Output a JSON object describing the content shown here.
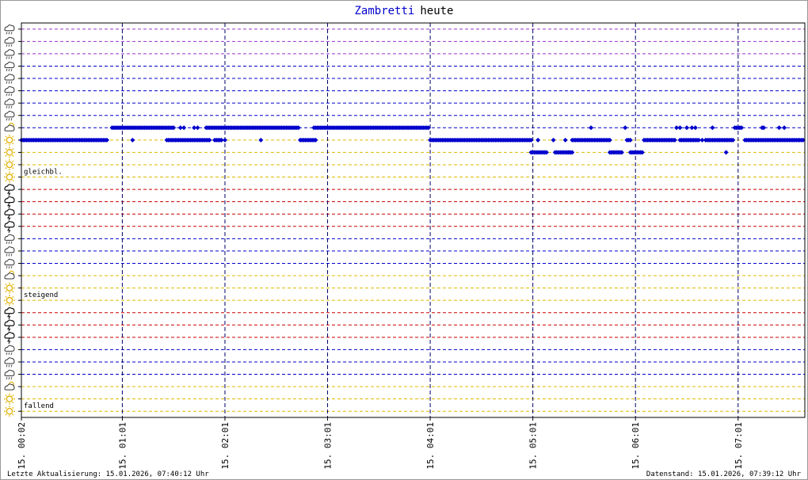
{
  "chart_data": {
    "type": "scatter",
    "title_part1": "Zambretti",
    "title_part2": "heute",
    "title_colors": {
      "part1": "#0000cc",
      "part2": "#000000"
    },
    "x_unit": "minutes after 15. 00:02",
    "xlim": [
      0,
      458
    ],
    "ylim": [
      0.5,
      32.5
    ],
    "x_ticks": [
      {
        "label": "15. 00:02",
        "x": 0
      },
      {
        "label": "15. 01:01",
        "x": 59
      },
      {
        "label": "15. 02:01",
        "x": 119
      },
      {
        "label": "15. 03:01",
        "x": 179
      },
      {
        "label": "15. 04:01",
        "x": 239
      },
      {
        "label": "15. 05:01",
        "x": 299
      },
      {
        "label": "15. 06:01",
        "x": 359
      },
      {
        "label": "15. 07:01",
        "x": 419
      }
    ],
    "y_levels": [
      {
        "y": 1,
        "icon": "cloud-rain-icon",
        "color": "#9933cc"
      },
      {
        "y": 2,
        "icon": "cloud-rain-icon",
        "color": "#9933cc"
      },
      {
        "y": 3,
        "icon": "cloud-rain-icon",
        "color": "#9933cc"
      },
      {
        "y": 4,
        "icon": "cloud-rain-icon",
        "color": "#0000cc"
      },
      {
        "y": 5,
        "icon": "cloud-rain-icon",
        "color": "#0000cc"
      },
      {
        "y": 6,
        "icon": "cloud-rain-icon",
        "color": "#0000cc"
      },
      {
        "y": 7,
        "icon": "cloud-rain-icon",
        "color": "#0000cc"
      },
      {
        "y": 8,
        "icon": "cloud-rain-icon",
        "color": "#0000cc"
      },
      {
        "y": 9,
        "icon": "cloud-sun-icon",
        "color": "#0000cc"
      },
      {
        "y": 10,
        "icon": "sun-icon",
        "color": "#ddbb00"
      },
      {
        "y": 11,
        "icon": "sun-icon",
        "color": "#ddbb00"
      },
      {
        "y": 12,
        "icon": "sun-icon",
        "color": "#ddbb00"
      },
      {
        "y": 13,
        "icon": "sun-icon",
        "color": "#ddbb00"
      },
      {
        "y": 14,
        "icon": "storm-cloud-icon",
        "color": "#cc0000"
      },
      {
        "y": 15,
        "icon": "storm-cloud-icon",
        "color": "#cc0000"
      },
      {
        "y": 16,
        "icon": "storm-cloud-icon",
        "color": "#cc0000"
      },
      {
        "y": 17,
        "icon": "storm-cloud-icon",
        "color": "#cc0000"
      },
      {
        "y": 18,
        "icon": "cloud-rain-icon",
        "color": "#0000cc"
      },
      {
        "y": 19,
        "icon": "cloud-rain-icon",
        "color": "#0000cc"
      },
      {
        "y": 20,
        "icon": "cloud-rain-icon",
        "color": "#0000cc"
      },
      {
        "y": 21,
        "icon": "cloud-sun-icon",
        "color": "#ddbb00"
      },
      {
        "y": 22,
        "icon": "sun-icon",
        "color": "#ddbb00"
      },
      {
        "y": 23,
        "icon": "sun-icon",
        "color": "#ddbb00"
      },
      {
        "y": 24,
        "icon": "storm-cloud-icon",
        "color": "#cc0000"
      },
      {
        "y": 25,
        "icon": "storm-cloud-icon",
        "color": "#cc0000"
      },
      {
        "y": 26,
        "icon": "storm-cloud-icon",
        "color": "#cc0000"
      },
      {
        "y": 27,
        "icon": "cloud-rain-icon",
        "color": "#0000cc"
      },
      {
        "y": 28,
        "icon": "cloud-rain-icon",
        "color": "#0000cc"
      },
      {
        "y": 29,
        "icon": "cloud-rain-icon",
        "color": "#0000cc"
      },
      {
        "y": 30,
        "icon": "cloud-sun-icon",
        "color": "#ddbb00"
      },
      {
        "y": 31,
        "icon": "sun-icon",
        "color": "#ddbb00"
      },
      {
        "y": 32,
        "icon": "sun-icon",
        "color": "#ddbb00"
      }
    ],
    "zone_labels": [
      {
        "text": "gleichbl.",
        "y": 13
      },
      {
        "text": "steigend",
        "y": 23
      },
      {
        "text": "fallend",
        "y": 32
      }
    ],
    "marker_color": "#0000cc",
    "series": [
      {
        "segments": [
          {
            "y": 10,
            "x_from": 0,
            "x_to": 50
          },
          {
            "y": 9,
            "x_from": 53,
            "x_to": 85
          },
          {
            "y": 9,
            "x_from": 86,
            "x_to": 89
          },
          {
            "y": 10,
            "x_from": 85,
            "x_to": 110
          },
          {
            "y": 9,
            "x_from": 108,
            "x_to": 110
          },
          {
            "y": 9,
            "x_from": 111,
            "x_to": 135
          },
          {
            "y": 10,
            "x_from": 113,
            "x_to": 117
          },
          {
            "y": 9,
            "x_from": 136,
            "x_to": 162
          },
          {
            "y": 10,
            "x_from": 163,
            "x_to": 172
          },
          {
            "y": 9,
            "x_from": 172,
            "x_to": 238
          },
          {
            "y": 10,
            "x_from": 239,
            "x_to": 298
          },
          {
            "y": 11,
            "x_from": 298,
            "x_to": 307
          },
          {
            "y": 11,
            "x_from": 312,
            "x_to": 322
          },
          {
            "y": 10,
            "x_from": 322,
            "x_to": 344
          },
          {
            "y": 11,
            "x_from": 344,
            "x_to": 351
          },
          {
            "y": 10,
            "x_from": 354,
            "x_to": 356
          },
          {
            "y": 11,
            "x_from": 356,
            "x_to": 363
          },
          {
            "y": 10,
            "x_from": 364,
            "x_to": 382
          },
          {
            "y": 10,
            "x_from": 385,
            "x_to": 396
          },
          {
            "y": 10,
            "x_from": 400,
            "x_to": 416
          },
          {
            "y": 9,
            "x_from": 417,
            "x_to": 421
          },
          {
            "y": 10,
            "x_from": 423,
            "x_to": 457
          }
        ],
        "points": [
          {
            "x": 65,
            "y": 10
          },
          {
            "x": 93,
            "y": 9
          },
          {
            "x": 95,
            "y": 9
          },
          {
            "x": 101,
            "y": 9
          },
          {
            "x": 103,
            "y": 9
          },
          {
            "x": 119,
            "y": 10
          },
          {
            "x": 140,
            "y": 10
          },
          {
            "x": 171,
            "y": 9
          },
          {
            "x": 302,
            "y": 10
          },
          {
            "x": 311,
            "y": 10
          },
          {
            "x": 318,
            "y": 10
          },
          {
            "x": 320,
            "y": 11
          },
          {
            "x": 333,
            "y": 9
          },
          {
            "x": 353,
            "y": 9
          },
          {
            "x": 383,
            "y": 9
          },
          {
            "x": 385,
            "y": 9
          },
          {
            "x": 389,
            "y": 9
          },
          {
            "x": 392,
            "y": 9
          },
          {
            "x": 394,
            "y": 9
          },
          {
            "x": 398,
            "y": 10
          },
          {
            "x": 404,
            "y": 9
          },
          {
            "x": 412,
            "y": 11
          },
          {
            "x": 433,
            "y": 9
          },
          {
            "x": 434,
            "y": 9
          },
          {
            "x": 443,
            "y": 9
          },
          {
            "x": 446,
            "y": 9
          }
        ]
      }
    ]
  },
  "footer": {
    "left": "Letzte Aktualisierung: 15.01.2026, 07:40:12 Uhr",
    "right": "Datenstand: 15.01.2026, 07:39:12 Uhr"
  }
}
